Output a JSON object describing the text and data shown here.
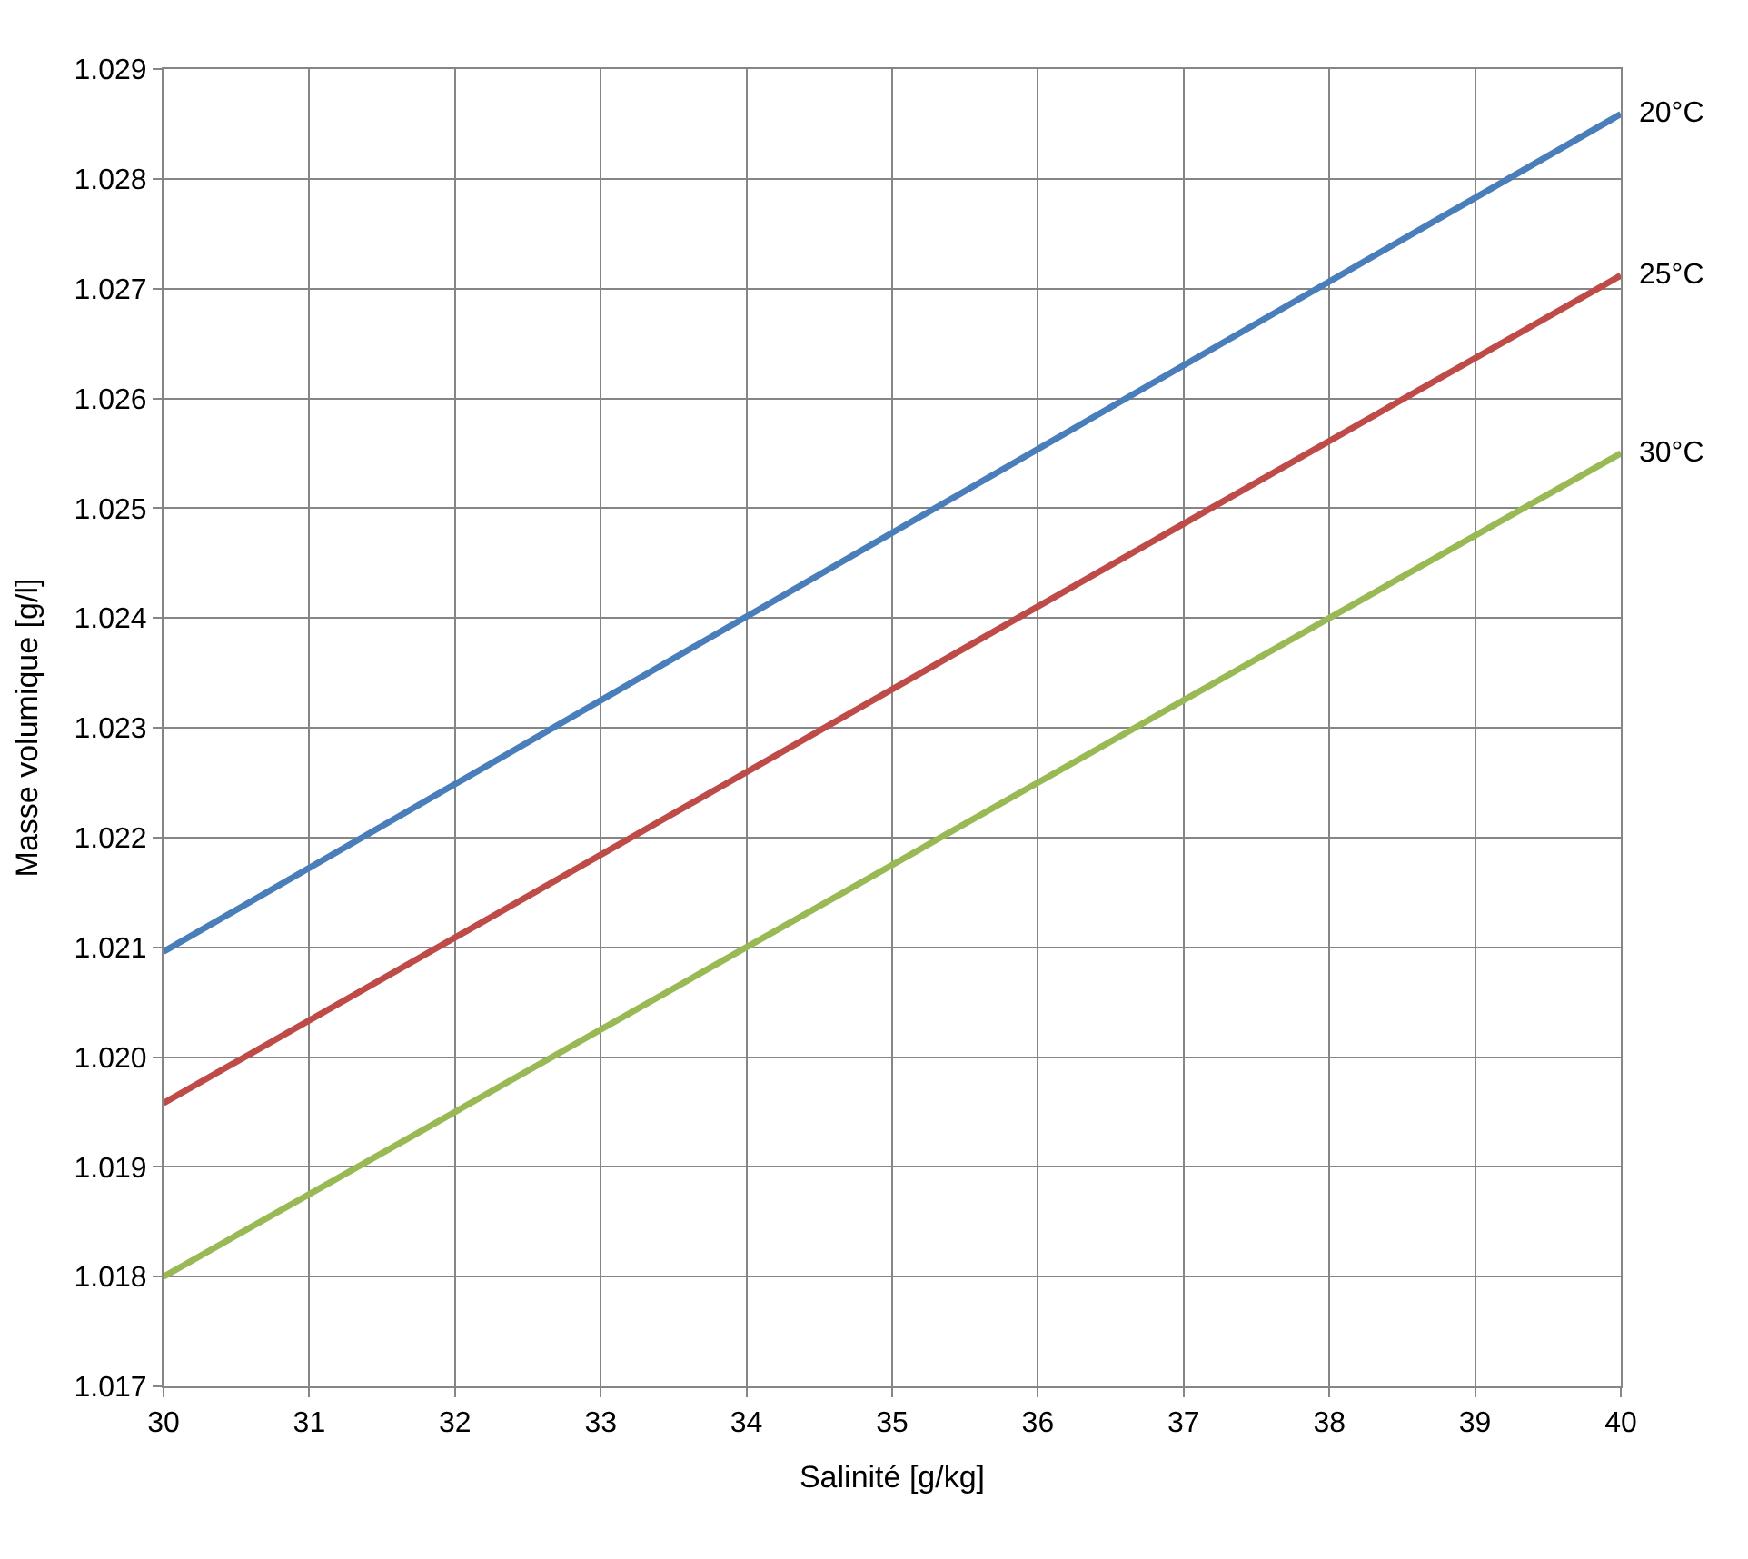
{
  "chart_data": {
    "type": "line",
    "xlabel": "Salinité [g/kg]",
    "ylabel": "Masse volumique [g/l]",
    "x": [
      30,
      40
    ],
    "series": [
      {
        "name": "20°C",
        "color": "#4a7ebb",
        "values": [
          1.02096,
          1.02859
        ]
      },
      {
        "name": "25°C",
        "color": "#be4b48",
        "values": [
          1.01958,
          1.02712
        ]
      },
      {
        "name": "30°C",
        "color": "#98b954",
        "values": [
          1.018,
          1.0255
        ]
      }
    ],
    "xlim": [
      30,
      40
    ],
    "xticks": [
      30,
      31,
      32,
      33,
      34,
      35,
      36,
      37,
      38,
      39,
      40
    ],
    "ylim": [
      1.017,
      1.029
    ],
    "yticks": [
      {
        "value": 1.017,
        "label": "1.017"
      },
      {
        "value": 1.018,
        "label": "1.018"
      },
      {
        "value": 1.019,
        "label": "1.019"
      },
      {
        "value": 1.02,
        "label": "1.020"
      },
      {
        "value": 1.021,
        "label": "1.021"
      },
      {
        "value": 1.022,
        "label": "1.022"
      },
      {
        "value": 1.023,
        "label": "1.023"
      },
      {
        "value": 1.024,
        "label": "1.024"
      },
      {
        "value": 1.025,
        "label": "1.025"
      },
      {
        "value": 1.026,
        "label": "1.026"
      },
      {
        "value": 1.027,
        "label": "1.027"
      },
      {
        "value": 1.028,
        "label": "1.028"
      },
      {
        "value": 1.029,
        "label": "1.029"
      }
    ],
    "grid": true,
    "legend": false,
    "marker": "none",
    "line_style": "solid"
  }
}
